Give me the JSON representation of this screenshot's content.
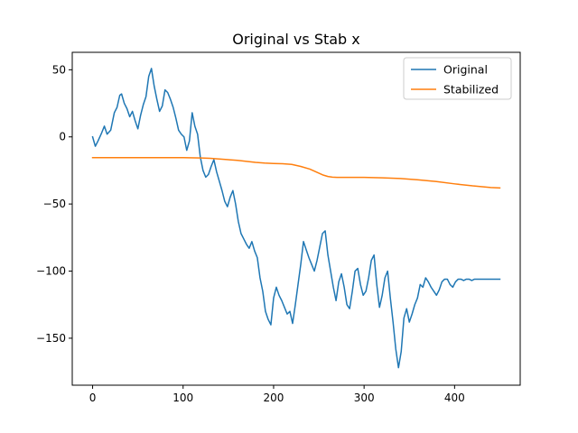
{
  "chart_data": {
    "type": "line",
    "title": "Original vs Stab x",
    "xlabel": "",
    "ylabel": "",
    "xlim": [
      -22.5,
      472.5
    ],
    "ylim": [
      -185,
      63
    ],
    "xticks": [
      0,
      100,
      200,
      300,
      400
    ],
    "yticks": [
      -150,
      -100,
      -50,
      0,
      50
    ],
    "xtick_labels": [
      "0",
      "100",
      "200",
      "300",
      "400"
    ],
    "ytick_labels": [
      "−150",
      "−100",
      "−50",
      "0",
      "50"
    ],
    "grid": false,
    "legend_position": "top-right",
    "series": [
      {
        "name": "Original",
        "color": "#1f77b4",
        "x": [
          0,
          3,
          6,
          10,
          13,
          16,
          20,
          24,
          27,
          30,
          32,
          35,
          38,
          41,
          44,
          47,
          50,
          53,
          56,
          59,
          62,
          65,
          68,
          71,
          74,
          77,
          80,
          83,
          86,
          89,
          92,
          95,
          98,
          101,
          104,
          107,
          110,
          113,
          116,
          119,
          122,
          125,
          128,
          131,
          134,
          137,
          140,
          143,
          146,
          149,
          152,
          155,
          158,
          161,
          164,
          167,
          170,
          173,
          176,
          179,
          182,
          185,
          188,
          191,
          194,
          197,
          200,
          203,
          206,
          209,
          212,
          215,
          218,
          221,
          224,
          227,
          230,
          233,
          236,
          239,
          242,
          245,
          248,
          251,
          254,
          257,
          260,
          263,
          266,
          269,
          272,
          275,
          278,
          281,
          284,
          287,
          290,
          293,
          296,
          299,
          302,
          305,
          308,
          311,
          314,
          317,
          320,
          323,
          326,
          329,
          332,
          335,
          338,
          341,
          344,
          347,
          350,
          353,
          356,
          359,
          362,
          365,
          368,
          371,
          374,
          377,
          380,
          383,
          386,
          389,
          392,
          395,
          398,
          401,
          404,
          407,
          410,
          413,
          416,
          419,
          422,
          425,
          428,
          431,
          434,
          437,
          440,
          443,
          446,
          450
        ],
        "values": [
          0,
          -7,
          -3,
          3,
          8,
          2,
          5,
          18,
          22,
          31,
          32,
          25,
          21,
          15,
          19,
          12,
          6,
          16,
          24,
          30,
          45,
          51,
          38,
          28,
          19,
          23,
          35,
          33,
          28,
          22,
          14,
          5,
          2,
          0,
          -10,
          -3,
          18,
          8,
          2,
          -15,
          -25,
          -30,
          -28,
          -22,
          -17,
          -26,
          -33,
          -40,
          -48,
          -52,
          -45,
          -40,
          -50,
          -63,
          -72,
          -76,
          -80,
          -83,
          -78,
          -85,
          -90,
          -105,
          -115,
          -130,
          -136,
          -140,
          -120,
          -112,
          -118,
          -122,
          -127,
          -132,
          -130,
          -139,
          -125,
          -110,
          -95,
          -78,
          -84,
          -90,
          -95,
          -100,
          -92,
          -82,
          -72,
          -70,
          -88,
          -100,
          -112,
          -122,
          -108,
          -102,
          -112,
          -125,
          -128,
          -115,
          -100,
          -98,
          -110,
          -118,
          -115,
          -105,
          -92,
          -88,
          -110,
          -127,
          -118,
          -105,
          -100,
          -120,
          -138,
          -158,
          -172,
          -160,
          -135,
          -128,
          -138,
          -132,
          -125,
          -120,
          -110,
          -112,
          -105,
          -108,
          -112,
          -115,
          -118,
          -114,
          -108,
          -106,
          -106,
          -110,
          -112,
          -108,
          -106,
          -106,
          -107,
          -106,
          -106,
          -107,
          -106,
          -106,
          -106,
          -106,
          -106,
          -106,
          -106,
          -106,
          -106,
          -106
        ]
      },
      {
        "name": "Stabilized",
        "color": "#ff7f0e",
        "x": [
          0,
          20,
          40,
          60,
          80,
          100,
          120,
          130,
          140,
          150,
          160,
          170,
          180,
          190,
          200,
          210,
          220,
          230,
          240,
          250,
          255,
          260,
          265,
          270,
          280,
          300,
          320,
          340,
          360,
          380,
          400,
          420,
          440,
          450
        ],
        "values": [
          -15.5,
          -15.5,
          -15.5,
          -15.5,
          -15.5,
          -15.5,
          -15.7,
          -16,
          -16.5,
          -17,
          -17.5,
          -18.2,
          -19,
          -19.5,
          -19.8,
          -20,
          -20.5,
          -22,
          -24,
          -27,
          -28.5,
          -29.5,
          -30,
          -30.2,
          -30.2,
          -30.2,
          -30.5,
          -31,
          -32,
          -33.3,
          -35,
          -36.5,
          -37.7,
          -38
        ]
      }
    ]
  }
}
